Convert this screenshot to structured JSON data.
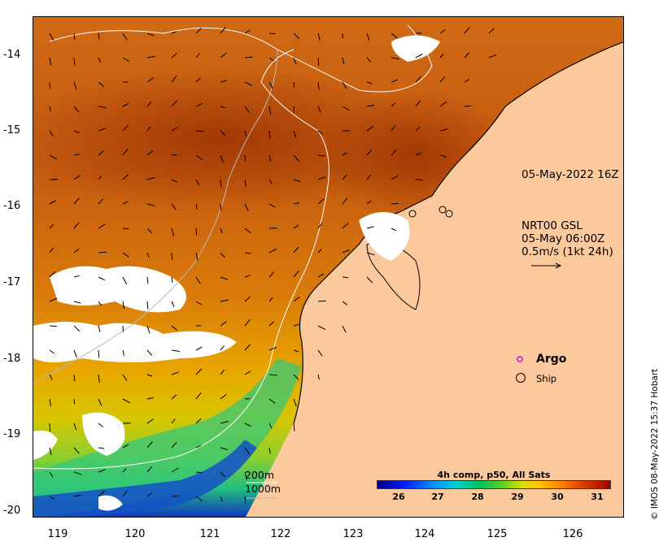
{
  "map": {
    "y_ticks": [
      "-14",
      "-15",
      "-16",
      "-17",
      "-18",
      "-19",
      "-20"
    ],
    "x_ticks": [
      "119",
      "120",
      "121",
      "122",
      "123",
      "124",
      "125",
      "126"
    ],
    "timestamp_label": "05-May-2022 16Z",
    "current_source": "NRT00 GSL",
    "current_time": "05-May 06:00Z",
    "current_scale": "0.5m/s (1kt 24h)",
    "legend_argo": "Argo",
    "legend_ship": "Ship",
    "isobath_200": "200m",
    "isobath_1000": "1000m",
    "colorbar_title": "4h comp, p50, All Sats",
    "colorbar_ticks": [
      "26",
      "27",
      "28",
      "29",
      "30",
      "31"
    ],
    "credit": "© IMOS 08-May-2022 15:37 Hobart",
    "colors": {
      "land": "#fcc99c",
      "sst_warm": "#c45a10",
      "sst_hot": "#a33a05",
      "argo": "#e000e0"
    }
  }
}
